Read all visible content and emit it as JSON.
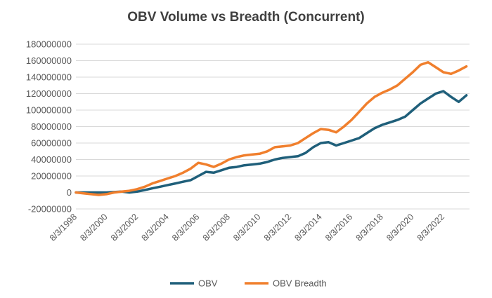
{
  "chart_data": {
    "type": "line",
    "title": "OBV Volume vs Breadth (Concurrent)",
    "xlabel": "",
    "ylabel": "",
    "ylim": [
      -20000000,
      180000000
    ],
    "y_ticks": [
      "180000000",
      "160000000",
      "140000000",
      "120000000",
      "100000000",
      "80000000",
      "60000000",
      "40000000",
      "20000000",
      "0",
      "-20000000"
    ],
    "x_ticks": [
      "8/3/1998",
      "8/3/2000",
      "8/3/2002",
      "8/3/2004",
      "8/3/2006",
      "8/3/2008",
      "8/3/2010",
      "8/3/2012",
      "8/3/2014",
      "8/3/2016",
      "8/3/2018",
      "8/3/2020",
      "8/3/2022"
    ],
    "grid": true,
    "legend_position": "bottom",
    "series": [
      {
        "name": "OBV",
        "color": "#1f5f7a",
        "x": [
          "1998-08-03",
          "1999-02-01",
          "1999-08-01",
          "2000-02-01",
          "2000-08-01",
          "2001-02-01",
          "2001-08-01",
          "2002-02-01",
          "2002-08-01",
          "2003-02-01",
          "2003-08-01",
          "2004-02-01",
          "2004-08-01",
          "2005-02-01",
          "2005-08-01",
          "2006-02-01",
          "2006-08-01",
          "2007-02-01",
          "2007-08-01",
          "2008-02-01",
          "2008-08-01",
          "2009-02-01",
          "2009-08-01",
          "2010-02-01",
          "2010-08-01",
          "2011-02-01",
          "2011-08-01",
          "2012-02-01",
          "2012-08-01",
          "2013-02-01",
          "2013-08-01",
          "2014-02-01",
          "2014-08-01",
          "2015-02-01",
          "2015-08-01",
          "2016-02-01",
          "2016-08-01",
          "2017-02-01",
          "2017-08-01",
          "2018-02-01",
          "2018-08-01",
          "2019-02-01",
          "2019-08-01",
          "2020-02-01",
          "2020-08-01",
          "2021-02-01",
          "2021-08-01",
          "2022-02-01",
          "2022-08-01",
          "2023-02-01",
          "2023-08-01",
          "2024-02-01"
        ],
        "values": [
          0,
          0,
          0,
          0,
          0,
          500000,
          1000000,
          0,
          1000000,
          3000000,
          5000000,
          7000000,
          9000000,
          11000000,
          13000000,
          15000000,
          20000000,
          25000000,
          24000000,
          27000000,
          30000000,
          31000000,
          33000000,
          34000000,
          35000000,
          37000000,
          40000000,
          42000000,
          43000000,
          44000000,
          48000000,
          55000000,
          60000000,
          61000000,
          57000000,
          60000000,
          63000000,
          66000000,
          72000000,
          78000000,
          82000000,
          85000000,
          88000000,
          92000000,
          100000000,
          108000000,
          114000000,
          120000000,
          123000000,
          116000000,
          110000000,
          118000000
        ]
      },
      {
        "name": "OBV Breadth",
        "color": "#f07f2d",
        "x": [
          "1998-08-03",
          "1999-02-01",
          "1999-08-01",
          "2000-02-01",
          "2000-08-01",
          "2001-02-01",
          "2001-08-01",
          "2002-02-01",
          "2002-08-01",
          "2003-02-01",
          "2003-08-01",
          "2004-02-01",
          "2004-08-01",
          "2005-02-01",
          "2005-08-01",
          "2006-02-01",
          "2006-08-01",
          "2007-02-01",
          "2007-08-01",
          "2008-02-01",
          "2008-08-01",
          "2009-02-01",
          "2009-08-01",
          "2010-02-01",
          "2010-08-01",
          "2011-02-01",
          "2011-08-01",
          "2012-02-01",
          "2012-08-01",
          "2013-02-01",
          "2013-08-01",
          "2014-02-01",
          "2014-08-01",
          "2015-02-01",
          "2015-08-01",
          "2016-02-01",
          "2016-08-01",
          "2017-02-01",
          "2017-08-01",
          "2018-02-01",
          "2018-08-01",
          "2019-02-01",
          "2019-08-01",
          "2020-02-01",
          "2020-08-01",
          "2021-02-01",
          "2021-08-01",
          "2022-02-01",
          "2022-08-01",
          "2023-02-01",
          "2023-08-01",
          "2024-02-01"
        ],
        "values": [
          0,
          -1000000,
          -2000000,
          -3000000,
          -2000000,
          0,
          1000000,
          2000000,
          4000000,
          7000000,
          11000000,
          14000000,
          17000000,
          20000000,
          24000000,
          29000000,
          36000000,
          34000000,
          31000000,
          35000000,
          40000000,
          43000000,
          45000000,
          46000000,
          47000000,
          50000000,
          55000000,
          56000000,
          57000000,
          60000000,
          66000000,
          72000000,
          77000000,
          76000000,
          73000000,
          80000000,
          88000000,
          98000000,
          108000000,
          116000000,
          121000000,
          125000000,
          130000000,
          138000000,
          146000000,
          155000000,
          158000000,
          152000000,
          146000000,
          144000000,
          148000000,
          153000000
        ]
      }
    ]
  }
}
